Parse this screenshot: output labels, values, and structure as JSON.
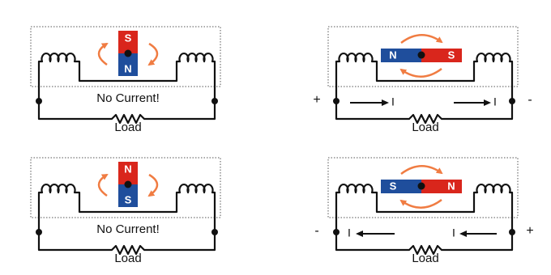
{
  "panels": [
    {
      "magnet": {
        "orientation": "vertical",
        "labels": [
          "S",
          "N"
        ],
        "colors": [
          "#d9261c",
          "#1f4e9c"
        ]
      },
      "caption": "No Current!",
      "load": "Load"
    },
    {
      "magnet": {
        "orientation": "horizontal",
        "labels": [
          "N",
          "S"
        ],
        "colors": [
          "#1f4e9c",
          "#d9261c"
        ]
      },
      "polarity": [
        "+",
        "-"
      ],
      "current": {
        "labels": [
          "I",
          "I"
        ],
        "direction": "right"
      },
      "load": "Load"
    },
    {
      "magnet": {
        "orientation": "vertical",
        "labels": [
          "N",
          "S"
        ],
        "colors": [
          "#d9261c",
          "#1f4e9c"
        ]
      },
      "caption": "No Current!",
      "load": "Load"
    },
    {
      "magnet": {
        "orientation": "horizontal",
        "labels": [
          "S",
          "N"
        ],
        "colors": [
          "#1f4e9c",
          "#d9261c"
        ]
      },
      "polarity": [
        "-",
        "+"
      ],
      "current": {
        "labels": [
          "I",
          "I"
        ],
        "direction": "left"
      },
      "load": "Load"
    }
  ]
}
